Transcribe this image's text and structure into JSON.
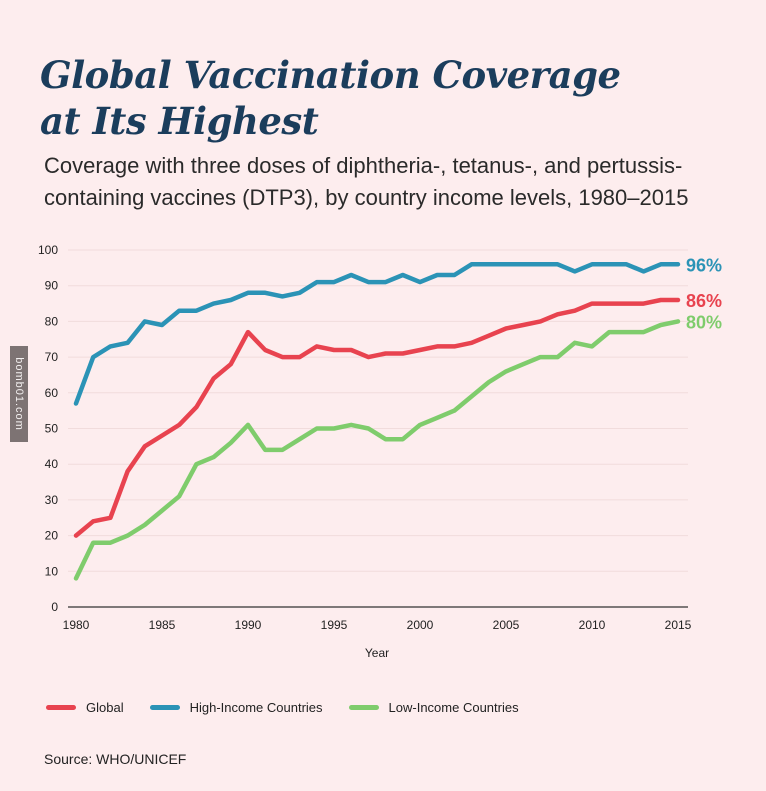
{
  "header": {
    "title_line1": "Global Vaccination Coverage",
    "title_line2": "at Its Highest",
    "subtitle": "Coverage with three doses of diphtheria-, tetanus-, and pertussis-containing vaccines (DTP3), by country income levels, 1980–2015"
  },
  "watermark": "bomb01.com",
  "source": "Source: WHO/UNICEF",
  "chart_data": {
    "type": "line",
    "title": "Global Vaccination Coverage at Its Highest",
    "xlabel": "Year",
    "ylabel": "",
    "xlim": [
      1980,
      2015
    ],
    "ylim": [
      0,
      100
    ],
    "grid": true,
    "legend_position": "bottom",
    "x_ticks": [
      1980,
      1985,
      1990,
      1995,
      2000,
      2005,
      2010,
      2015
    ],
    "y_ticks": [
      0,
      10,
      20,
      30,
      40,
      50,
      60,
      70,
      80,
      90,
      100
    ],
    "x": [
      1980,
      1981,
      1982,
      1983,
      1984,
      1985,
      1986,
      1987,
      1988,
      1989,
      1990,
      1991,
      1992,
      1993,
      1994,
      1995,
      1996,
      1997,
      1998,
      1999,
      2000,
      2001,
      2002,
      2003,
      2004,
      2005,
      2006,
      2007,
      2008,
      2009,
      2010,
      2011,
      2012,
      2013,
      2014,
      2015
    ],
    "series": [
      {
        "name": "Global",
        "color": "#e8434f",
        "end_label": "86%",
        "values": [
          20,
          24,
          25,
          38,
          45,
          48,
          51,
          56,
          64,
          68,
          77,
          72,
          70,
          70,
          73,
          72,
          72,
          70,
          71,
          71,
          72,
          73,
          73,
          74,
          76,
          78,
          79,
          80,
          82,
          83,
          85,
          85,
          85,
          85,
          86,
          86
        ]
      },
      {
        "name": "High-Income Countries",
        "color": "#2b93b6",
        "end_label": "96%",
        "values": [
          57,
          70,
          73,
          74,
          80,
          79,
          83,
          83,
          85,
          86,
          88,
          88,
          87,
          88,
          91,
          91,
          93,
          91,
          91,
          93,
          91,
          93,
          93,
          96,
          96,
          96,
          96,
          96,
          96,
          94,
          96,
          96,
          96,
          94,
          96,
          96
        ]
      },
      {
        "name": "Low-Income Countries",
        "color": "#7fcc6c",
        "end_label": "80%",
        "values": [
          8,
          18,
          18,
          20,
          23,
          27,
          31,
          40,
          42,
          46,
          51,
          44,
          44,
          47,
          50,
          50,
          51,
          50,
          47,
          47,
          51,
          53,
          55,
          59,
          63,
          66,
          68,
          70,
          70,
          74,
          73,
          77,
          77,
          77,
          79,
          80
        ]
      }
    ]
  }
}
